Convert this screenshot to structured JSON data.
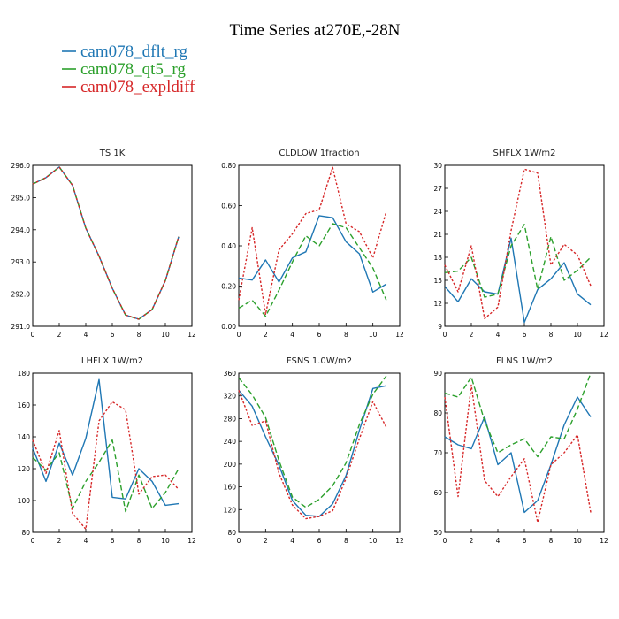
{
  "figure": {
    "title": "Time Series at270E,-28N",
    "legend": [
      {
        "name": "cam078_dflt_rg",
        "color": "#1f77b4",
        "dash": "solid"
      },
      {
        "name": "cam078_qt5_rg",
        "color": "#2ca02c",
        "dash": "dashed"
      },
      {
        "name": "cam078_expldiff",
        "color": "#d62728",
        "dash": "dotted"
      }
    ]
  },
  "chart_data": [
    {
      "type": "line",
      "title": "TS   1K",
      "x": [
        0,
        1,
        2,
        3,
        4,
        5,
        6,
        7,
        8,
        9,
        10,
        11
      ],
      "xlim": [
        0,
        12
      ],
      "xticks": [
        0,
        2,
        4,
        6,
        8,
        10,
        12
      ],
      "xtick_labels": [
        "0",
        "2",
        "4",
        "6",
        "8",
        "10",
        "12"
      ],
      "ylim": [
        291.0,
        296.0
      ],
      "yticks": [
        291.0,
        292.0,
        293.0,
        294.0,
        295.0,
        296.0
      ],
      "ytick_labels": [
        "291.0",
        "292.0",
        "293.0",
        "294.0",
        "295.0",
        "296.0"
      ],
      "series": [
        {
          "name": "cam078_dflt_rg",
          "values": [
            295.42,
            295.62,
            295.95,
            295.38,
            294.05,
            293.18,
            292.18,
            291.35,
            291.22,
            291.52,
            292.42,
            293.78
          ]
        },
        {
          "name": "cam078_qt5_rg",
          "values": [
            295.42,
            295.62,
            295.95,
            295.38,
            294.05,
            293.18,
            292.18,
            291.35,
            291.22,
            291.52,
            292.42,
            293.78
          ]
        },
        {
          "name": "cam078_expldiff",
          "values": [
            295.42,
            295.62,
            295.95,
            295.38,
            294.05,
            293.18,
            292.18,
            291.35,
            291.22,
            291.52,
            292.42,
            293.78
          ]
        }
      ]
    },
    {
      "type": "line",
      "title": "CLDLOW   1fraction",
      "x": [
        0,
        1,
        2,
        3,
        4,
        5,
        6,
        7,
        8,
        9,
        10,
        11
      ],
      "xlim": [
        0,
        12
      ],
      "xticks": [
        0,
        2,
        4,
        6,
        8,
        10,
        12
      ],
      "xtick_labels": [
        "0",
        "2",
        "4",
        "6",
        "8",
        "10",
        "12"
      ],
      "ylim": [
        0.0,
        0.8
      ],
      "yticks": [
        0.0,
        0.2,
        0.4,
        0.6,
        0.8
      ],
      "ytick_labels": [
        "0.00",
        "0.20",
        "0.40",
        "0.60",
        "0.80"
      ],
      "series": [
        {
          "name": "cam078_dflt_rg",
          "values": [
            0.24,
            0.23,
            0.33,
            0.22,
            0.34,
            0.37,
            0.55,
            0.54,
            0.42,
            0.36,
            0.17,
            0.21
          ]
        },
        {
          "name": "cam078_qt5_rg",
          "values": [
            0.09,
            0.13,
            0.05,
            0.18,
            0.32,
            0.45,
            0.4,
            0.51,
            0.49,
            0.39,
            0.29,
            0.13
          ]
        },
        {
          "name": "cam078_expldiff",
          "values": [
            0.13,
            0.49,
            0.06,
            0.38,
            0.46,
            0.56,
            0.58,
            0.79,
            0.51,
            0.47,
            0.34,
            0.57
          ]
        }
      ]
    },
    {
      "type": "line",
      "title": "SHFLX   1W/m2",
      "x": [
        0,
        1,
        2,
        3,
        4,
        5,
        6,
        7,
        8,
        9,
        10,
        11
      ],
      "xlim": [
        0,
        12
      ],
      "xticks": [
        0,
        2,
        4,
        6,
        8,
        10,
        12
      ],
      "xtick_labels": [
        "0",
        "2",
        "4",
        "6",
        "8",
        "10",
        "12"
      ],
      "ylim": [
        9,
        30
      ],
      "yticks": [
        9,
        12,
        15,
        18,
        21,
        24,
        27,
        30
      ],
      "ytick_labels": [
        "9",
        "12",
        "15",
        "18",
        "21",
        "24",
        "27",
        "30"
      ],
      "series": [
        {
          "name": "cam078_dflt_rg",
          "values": [
            14.2,
            12.2,
            15.2,
            13.5,
            13.2,
            20.5,
            9.5,
            13.8,
            15.2,
            17.3,
            13.2,
            11.8
          ]
        },
        {
          "name": "cam078_qt5_rg",
          "values": [
            16.0,
            16.2,
            18.0,
            12.8,
            13.2,
            19.5,
            22.3,
            13.8,
            20.7,
            15.0,
            16.3,
            18.0
          ]
        },
        {
          "name": "cam078_expldiff",
          "values": [
            17.0,
            13.5,
            19.5,
            10.0,
            11.5,
            21.5,
            29.5,
            29.0,
            17.0,
            19.7,
            18.3,
            14.3
          ]
        }
      ]
    },
    {
      "type": "line",
      "title": "LHFLX   1W/m2",
      "x": [
        0,
        1,
        2,
        3,
        4,
        5,
        6,
        7,
        8,
        9,
        10,
        11
      ],
      "xlim": [
        0,
        12
      ],
      "xticks": [
        0,
        2,
        4,
        6,
        8,
        10,
        12
      ],
      "xtick_labels": [
        "0",
        "2",
        "4",
        "6",
        "8",
        "10",
        "12"
      ],
      "ylim": [
        80,
        180
      ],
      "yticks": [
        80,
        100,
        120,
        140,
        160,
        180
      ],
      "ytick_labels": [
        "80",
        "100",
        "120",
        "140",
        "160",
        "180"
      ],
      "series": [
        {
          "name": "cam078_dflt_rg",
          "values": [
            133,
            112,
            136,
            116,
            139,
            176,
            102,
            101,
            120,
            112,
            97,
            98
          ]
        },
        {
          "name": "cam078_qt5_rg",
          "values": [
            127,
            119,
            130,
            95,
            112,
            124,
            138,
            93,
            116,
            95,
            105,
            120
          ]
        },
        {
          "name": "cam078_expldiff",
          "values": [
            138,
            117,
            144,
            92,
            82,
            150,
            162,
            157,
            104,
            115,
            116,
            107
          ]
        }
      ]
    },
    {
      "type": "line",
      "title": "FSNS   1.0W/m2",
      "x": [
        0,
        1,
        2,
        3,
        4,
        5,
        6,
        7,
        8,
        9,
        10,
        11
      ],
      "xlim": [
        0,
        12
      ],
      "xticks": [
        0,
        2,
        4,
        6,
        8,
        10,
        12
      ],
      "xtick_labels": [
        "0",
        "2",
        "4",
        "6",
        "8",
        "10",
        "12"
      ],
      "ylim": [
        80,
        360
      ],
      "yticks": [
        80,
        120,
        160,
        200,
        240,
        280,
        320,
        360
      ],
      "ytick_labels": [
        "80",
        "120",
        "160",
        "200",
        "240",
        "280",
        "320",
        "360"
      ],
      "series": [
        {
          "name": "cam078_dflt_rg",
          "values": [
            330,
            302,
            248,
            198,
            136,
            110,
            108,
            130,
            180,
            260,
            333,
            338
          ]
        },
        {
          "name": "cam078_qt5_rg",
          "values": [
            352,
            322,
            282,
            206,
            142,
            124,
            138,
            162,
            202,
            270,
            323,
            355
          ]
        },
        {
          "name": "cam078_expldiff",
          "values": [
            330,
            268,
            276,
            184,
            128,
            104,
            108,
            118,
            175,
            245,
            310,
            265
          ]
        }
      ]
    },
    {
      "type": "line",
      "title": "FLNS   1W/m2",
      "x": [
        0,
        1,
        2,
        3,
        4,
        5,
        6,
        7,
        8,
        9,
        10,
        11
      ],
      "xlim": [
        0,
        12
      ],
      "xticks": [
        0,
        2,
        4,
        6,
        8,
        10,
        12
      ],
      "xtick_labels": [
        "0",
        "2",
        "4",
        "6",
        "8",
        "10",
        "12"
      ],
      "ylim": [
        50,
        90
      ],
      "yticks": [
        50,
        60,
        70,
        80,
        90
      ],
      "ytick_labels": [
        "50",
        "60",
        "70",
        "80",
        "90"
      ],
      "series": [
        {
          "name": "cam078_dflt_rg",
          "values": [
            74,
            72,
            71,
            79,
            67,
            70,
            55,
            58,
            67,
            77,
            84,
            79
          ]
        },
        {
          "name": "cam078_qt5_rg",
          "values": [
            85,
            84,
            89,
            78,
            70,
            72,
            73.5,
            69,
            74,
            73.5,
            81,
            90
          ]
        },
        {
          "name": "cam078_expldiff",
          "values": [
            84,
            59,
            87,
            63,
            59,
            64,
            68.5,
            52.5,
            67,
            70,
            74.5,
            55
          ]
        }
      ]
    }
  ]
}
